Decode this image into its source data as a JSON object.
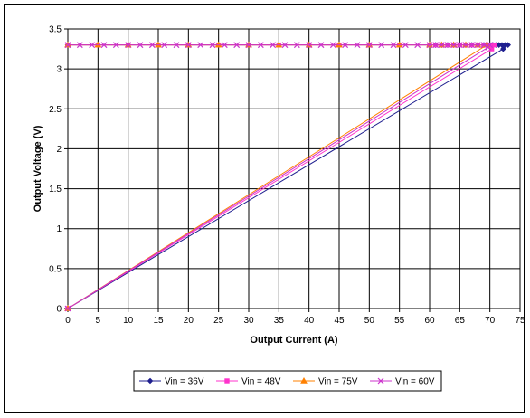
{
  "chart_data": {
    "type": "line",
    "title": "",
    "xlabel": "Output Current (A)",
    "ylabel": "Output Voltage (V)",
    "xlim": [
      0,
      75
    ],
    "ylim": [
      0,
      3.5
    ],
    "xticks": [
      "0",
      "5",
      "10",
      "15",
      "20",
      "25",
      "30",
      "35",
      "40",
      "45",
      "50",
      "55",
      "60",
      "65",
      "70",
      "75"
    ],
    "yticks": [
      "0",
      "0.5",
      "1",
      "1.5",
      "2",
      "2.5",
      "3",
      "3.5"
    ],
    "grid": true,
    "legend": "bottom",
    "series": [
      {
        "name": "Vin = 36V",
        "color": "#1f1f8f",
        "marker": "diamond",
        "x": [
          0,
          5,
          10,
          15,
          20,
          25,
          30,
          35,
          40,
          45,
          50,
          55,
          60,
          61,
          62,
          63,
          64,
          65,
          66,
          67,
          68,
          69,
          70,
          70.5,
          71,
          71.5,
          72,
          72.5,
          73,
          72.2,
          0
        ],
        "y": [
          3.3,
          3.3,
          3.3,
          3.3,
          3.3,
          3.3,
          3.3,
          3.3,
          3.3,
          3.3,
          3.3,
          3.3,
          3.3,
          3.3,
          3.3,
          3.3,
          3.3,
          3.3,
          3.3,
          3.3,
          3.3,
          3.3,
          3.3,
          3.3,
          3.3,
          3.3,
          3.3,
          3.3,
          3.3,
          3.25,
          0
        ]
      },
      {
        "name": "Vin = 48V",
        "color": "#ff33cc",
        "marker": "square",
        "x": [
          0,
          5,
          10,
          15,
          20,
          25,
          30,
          35,
          40,
          45,
          50,
          55,
          60,
          61,
          62,
          63,
          64,
          65,
          66,
          67,
          68,
          69,
          70,
          70.8,
          70.3,
          0
        ],
        "y": [
          3.3,
          3.3,
          3.3,
          3.3,
          3.3,
          3.3,
          3.3,
          3.3,
          3.3,
          3.3,
          3.3,
          3.3,
          3.3,
          3.3,
          3.3,
          3.3,
          3.3,
          3.3,
          3.3,
          3.3,
          3.3,
          3.3,
          3.3,
          3.3,
          3.25,
          0
        ]
      },
      {
        "name": "Vin = 75V",
        "color": "#ff8000",
        "marker": "triangle",
        "x": [
          0,
          5,
          10,
          15,
          20,
          25,
          30,
          35,
          40,
          45,
          50,
          55,
          60,
          62,
          64,
          66,
          68,
          69.5,
          0
        ],
        "y": [
          3.3,
          3.3,
          3.3,
          3.3,
          3.3,
          3.3,
          3.3,
          3.3,
          3.3,
          3.3,
          3.3,
          3.3,
          3.3,
          3.3,
          3.3,
          3.3,
          3.3,
          3.3,
          0
        ]
      },
      {
        "name": "Vin = 60V",
        "color": "#cc33cc",
        "marker": "x",
        "x": [
          0,
          2,
          4,
          6,
          8,
          10,
          12,
          14,
          16,
          18,
          20,
          22,
          24,
          26,
          28,
          30,
          32,
          34,
          36,
          38,
          40,
          42,
          44,
          46,
          48,
          50,
          52,
          54,
          56,
          58,
          60,
          61,
          62,
          63,
          64,
          65,
          66,
          67,
          68,
          69,
          70,
          69.7,
          0
        ],
        "y": [
          3.3,
          3.3,
          3.3,
          3.3,
          3.3,
          3.3,
          3.3,
          3.3,
          3.3,
          3.3,
          3.3,
          3.3,
          3.3,
          3.3,
          3.3,
          3.3,
          3.3,
          3.3,
          3.3,
          3.3,
          3.3,
          3.3,
          3.3,
          3.3,
          3.3,
          3.3,
          3.3,
          3.3,
          3.3,
          3.3,
          3.3,
          3.3,
          3.3,
          3.3,
          3.3,
          3.3,
          3.3,
          3.3,
          3.3,
          3.3,
          3.3,
          3.27,
          0
        ]
      }
    ]
  }
}
